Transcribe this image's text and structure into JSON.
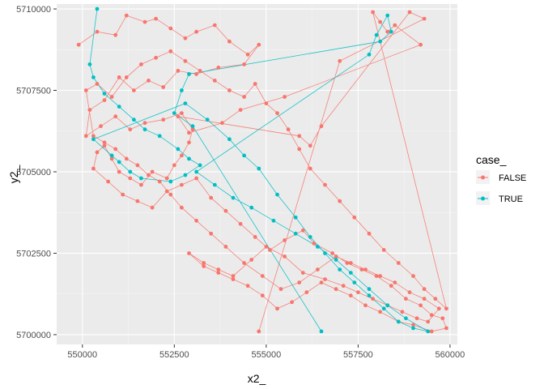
{
  "chart_data": {
    "type": "scatter",
    "xlabel": "x2_",
    "ylabel": "y2_",
    "xlim": [
      549300,
      560200
    ],
    "ylim": [
      5699700,
      5710150
    ],
    "x_ticks": [
      550000,
      552500,
      555000,
      557500,
      560000
    ],
    "x_tick_labels": [
      "550000",
      "552500",
      "555000",
      "557500",
      "560000"
    ],
    "y_ticks": [
      5700000,
      5702500,
      5705000,
      5707500,
      5710000
    ],
    "y_tick_labels": [
      "5700000",
      "5702500",
      "5705000",
      "5707500",
      "5710000"
    ],
    "grid": true,
    "legend": {
      "title": "case_",
      "placement": "right",
      "entries": [
        {
          "label": "FALSE",
          "color": "#F8766D"
        },
        {
          "label": "TRUE",
          "color": "#00BFC4"
        }
      ]
    },
    "series": [
      {
        "name": "FALSE",
        "color": "#F8766D",
        "x": [
          549900,
          550400,
          550900,
          551200,
          551700,
          552000,
          552400,
          552800,
          553100,
          553600,
          554000,
          554500,
          554800,
          554400,
          553700,
          553100,
          552600,
          552200,
          551800,
          551400,
          551000,
          550600,
          550200,
          550100,
          550500,
          550900,
          551300,
          551700,
          552200,
          552700,
          553000,
          552900,
          552700,
          552500,
          552300,
          551900,
          551600,
          551300,
          551000,
          550800,
          550600,
          550400,
          550300,
          550700,
          551100,
          551500,
          551900,
          552300,
          552700,
          553100,
          553500,
          553900,
          554300,
          554700,
          555100,
          555500,
          556000,
          556300,
          556800,
          557200,
          557600,
          558000,
          558400,
          558800,
          559200,
          559500,
          559800,
          559900,
          559500,
          559000,
          558600,
          558100,
          557700,
          557300,
          556900,
          556500,
          556100,
          555700,
          555300,
          554900,
          554500,
          554100,
          553700,
          553300,
          552900,
          553300,
          553700,
          554100,
          554600,
          555000,
          555500,
          556000,
          556600,
          557100,
          557500,
          557900,
          558300,
          558700,
          559100,
          559400,
          559700,
          559300,
          558900,
          558500,
          558100,
          557700,
          557300,
          556900,
          556400,
          555900,
          555400,
          554900,
          554400,
          553900,
          553500,
          553100,
          552700,
          552400,
          552100,
          551800,
          551500,
          551200,
          550900,
          550600,
          550300,
          550100,
          550400,
          550800,
          551200,
          551600,
          552000,
          552400,
          552800,
          553200,
          553600,
          554000,
          554400,
          554700,
          555000,
          555300,
          555600,
          555900,
          556200,
          556600,
          557000,
          557400,
          557800,
          558200,
          558600,
          559000,
          559300,
          559600,
          559900,
          557900,
          558100,
          558300,
          558500,
          559200,
          555500,
          554300,
          553800,
          552900,
          552600,
          555900,
          556200,
          556500,
          558900,
          559300,
          557000,
          554800
        ],
        "y": [
          5708900,
          5709300,
          5709200,
          5709800,
          5709600,
          5709700,
          5709400,
          5709100,
          5709300,
          5709500,
          5709000,
          5708600,
          5708900,
          5708300,
          5708200,
          5708000,
          5708100,
          5707600,
          5707800,
          5707500,
          5707900,
          5707200,
          5706900,
          5706100,
          5706400,
          5706700,
          5706300,
          5706500,
          5706600,
          5706800,
          5706300,
          5705900,
          5705500,
          5705200,
          5704800,
          5705000,
          5704600,
          5704800,
          5705000,
          5705400,
          5705800,
          5705600,
          5705100,
          5704700,
          5704300,
          5704100,
          5703900,
          5704400,
          5704600,
          5704800,
          5704200,
          5703800,
          5703400,
          5703000,
          5702600,
          5702900,
          5703200,
          5702800,
          5702500,
          5702200,
          5702000,
          5701800,
          5701500,
          5701100,
          5700900,
          5700600,
          5700500,
          5700200,
          5700100,
          5700300,
          5700400,
          5700700,
          5700900,
          5701200,
          5701400,
          5701600,
          5701300,
          5701000,
          5700800,
          5701200,
          5701500,
          5701700,
          5701900,
          5702100,
          5702500,
          5702200,
          5702000,
          5701800,
          5702300,
          5702700,
          5702400,
          5701900,
          5701700,
          5701500,
          5701300,
          5701100,
          5700900,
          5700700,
          5700500,
          5700400,
          5700800,
          5701100,
          5701300,
          5701600,
          5701800,
          5702000,
          5702200,
          5702400,
          5702000,
          5701600,
          5701400,
          5701800,
          5702200,
          5702700,
          5703100,
          5703500,
          5703900,
          5704300,
          5704700,
          5704900,
          5705200,
          5705400,
          5705700,
          5705900,
          5706100,
          5707500,
          5707700,
          5707300,
          5707900,
          5708300,
          5708500,
          5708700,
          5708400,
          5708100,
          5707800,
          5707500,
          5707300,
          5707700,
          5707100,
          5706800,
          5706300,
          5705700,
          5705100,
          5704600,
          5704100,
          5703600,
          5703100,
          5702600,
          5702200,
          5701800,
          5701400,
          5701100,
          5700800,
          5709900,
          5709600,
          5709300,
          5709500,
          5708900,
          5707300,
          5706900,
          5706500,
          5706200,
          5706700,
          5706100,
          5705800,
          5706400,
          5709900,
          5709700,
          5708400,
          5700100
        ]
      },
      {
        "name": "TRUE",
        "color": "#00BFC4",
        "x": [
          550400,
          550200,
          550300,
          550600,
          551000,
          551400,
          551700,
          552100,
          552600,
          552900,
          553200,
          552800,
          552400,
          551600,
          551300,
          551000,
          550800,
          550300,
          552800,
          553400,
          554000,
          554400,
          554800,
          555300,
          555800,
          556200,
          556600,
          557000,
          557400,
          557800,
          558200,
          558600,
          559000,
          559400,
          558800,
          558300,
          557800,
          557300,
          556900,
          556400,
          555800,
          555200,
          554600,
          554100,
          553600,
          553100,
          557800,
          558000,
          558300,
          558400,
          558100,
          552900,
          552700,
          552500,
          553000,
          556500
        ],
        "y": [
          5710000,
          5708300,
          5707900,
          5707400,
          5707000,
          5706600,
          5706300,
          5706100,
          5705700,
          5705400,
          5705200,
          5704900,
          5704700,
          5704800,
          5705000,
          5705300,
          5705500,
          5706000,
          5707100,
          5706600,
          5706000,
          5705500,
          5705100,
          5704300,
          5703600,
          5703000,
          5702500,
          5702000,
          5701600,
          5701200,
          5700800,
          5700400,
          5700200,
          5700100,
          5700500,
          5700900,
          5701400,
          5701900,
          5702300,
          5702700,
          5703100,
          5703500,
          5703900,
          5704200,
          5704600,
          5705000,
          5708600,
          5709200,
          5709800,
          5709300,
          5709000,
          5708000,
          5707500,
          5706800,
          5706400,
          5700100
        ]
      }
    ]
  }
}
